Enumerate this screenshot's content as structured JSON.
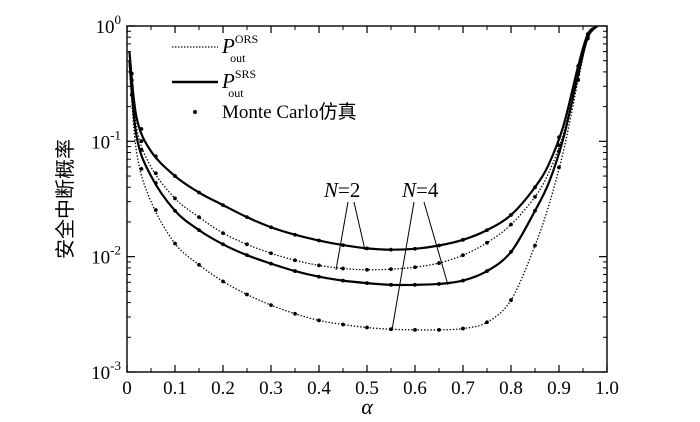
{
  "chart_data": {
    "type": "line",
    "xlabel": "α",
    "ylabel": "安全中断概率",
    "xlim": [
      0,
      1.0
    ],
    "ylim": [
      0.001,
      1
    ],
    "yscale": "log",
    "grid": false,
    "legend_position": "top-left",
    "x_ticks": [
      "0",
      "0.1",
      "0.2",
      "0.3",
      "0.4",
      "0.5",
      "0.6",
      "0.7",
      "0.8",
      "0.9",
      "1.0"
    ],
    "y_ticks": [
      {
        "base": "10",
        "exp": "-3",
        "value": 0.001
      },
      {
        "base": "10",
        "exp": "-2",
        "value": 0.01
      },
      {
        "base": "10",
        "exp": "-1",
        "value": 0.1
      },
      {
        "base": "10",
        "exp": "0",
        "value": 1
      }
    ],
    "legend": [
      {
        "sym": "P",
        "sub": "out",
        "sup": "ORS",
        "style": "dotted"
      },
      {
        "sym": "P",
        "sub": "out",
        "sup": "SRS",
        "style": "solid"
      },
      {
        "text": "Monte Carlo仿真",
        "style": "marker"
      }
    ],
    "annotations": [
      {
        "label_italic": "N",
        "label_rest": "=2"
      },
      {
        "label_italic": "N",
        "label_rest": "=4"
      }
    ],
    "x": [
      0.005,
      0.02,
      0.05,
      0.1,
      0.15,
      0.2,
      0.25,
      0.3,
      0.35,
      0.4,
      0.45,
      0.5,
      0.55,
      0.6,
      0.65,
      0.7,
      0.75,
      0.8,
      0.85,
      0.88,
      0.91,
      0.94,
      0.96,
      0.98
    ],
    "series": [
      {
        "style": "solid",
        "values": [
          0.6,
          0.16,
          0.082,
          0.05,
          0.036,
          0.028,
          0.022,
          0.018,
          0.0155,
          0.0138,
          0.0126,
          0.0118,
          0.0115,
          0.0117,
          0.0125,
          0.014,
          0.017,
          0.023,
          0.04,
          0.065,
          0.14,
          0.45,
          0.85,
          1.0
        ]
      },
      {
        "style": "dotted",
        "values": [
          0.55,
          0.13,
          0.06,
          0.032,
          0.022,
          0.016,
          0.0128,
          0.0107,
          0.0093,
          0.0084,
          0.0079,
          0.0077,
          0.0078,
          0.0081,
          0.0088,
          0.0103,
          0.0132,
          0.019,
          0.033,
          0.055,
          0.12,
          0.4,
          0.82,
          1.0
        ]
      },
      {
        "style": "solid",
        "values": [
          0.5,
          0.11,
          0.05,
          0.025,
          0.017,
          0.0128,
          0.0103,
          0.0087,
          0.0075,
          0.0067,
          0.0062,
          0.0059,
          0.0057,
          0.0057,
          0.0058,
          0.0062,
          0.0075,
          0.011,
          0.025,
          0.045,
          0.11,
          0.38,
          0.8,
          1.0
        ]
      },
      {
        "style": "dotted",
        "values": [
          0.45,
          0.08,
          0.03,
          0.013,
          0.0085,
          0.0061,
          0.0047,
          0.0038,
          0.0032,
          0.0028,
          0.00258,
          0.00243,
          0.00235,
          0.00232,
          0.00232,
          0.00238,
          0.0027,
          0.0042,
          0.0125,
          0.029,
          0.085,
          0.34,
          0.78,
          1.0
        ]
      }
    ],
    "marker_x": [
      0.01,
      0.03,
      0.06,
      0.1,
      0.15,
      0.2,
      0.25,
      0.3,
      0.35,
      0.4,
      0.45,
      0.5,
      0.55,
      0.6,
      0.65,
      0.7,
      0.75,
      0.8,
      0.85,
      0.9,
      0.94,
      0.96
    ]
  }
}
